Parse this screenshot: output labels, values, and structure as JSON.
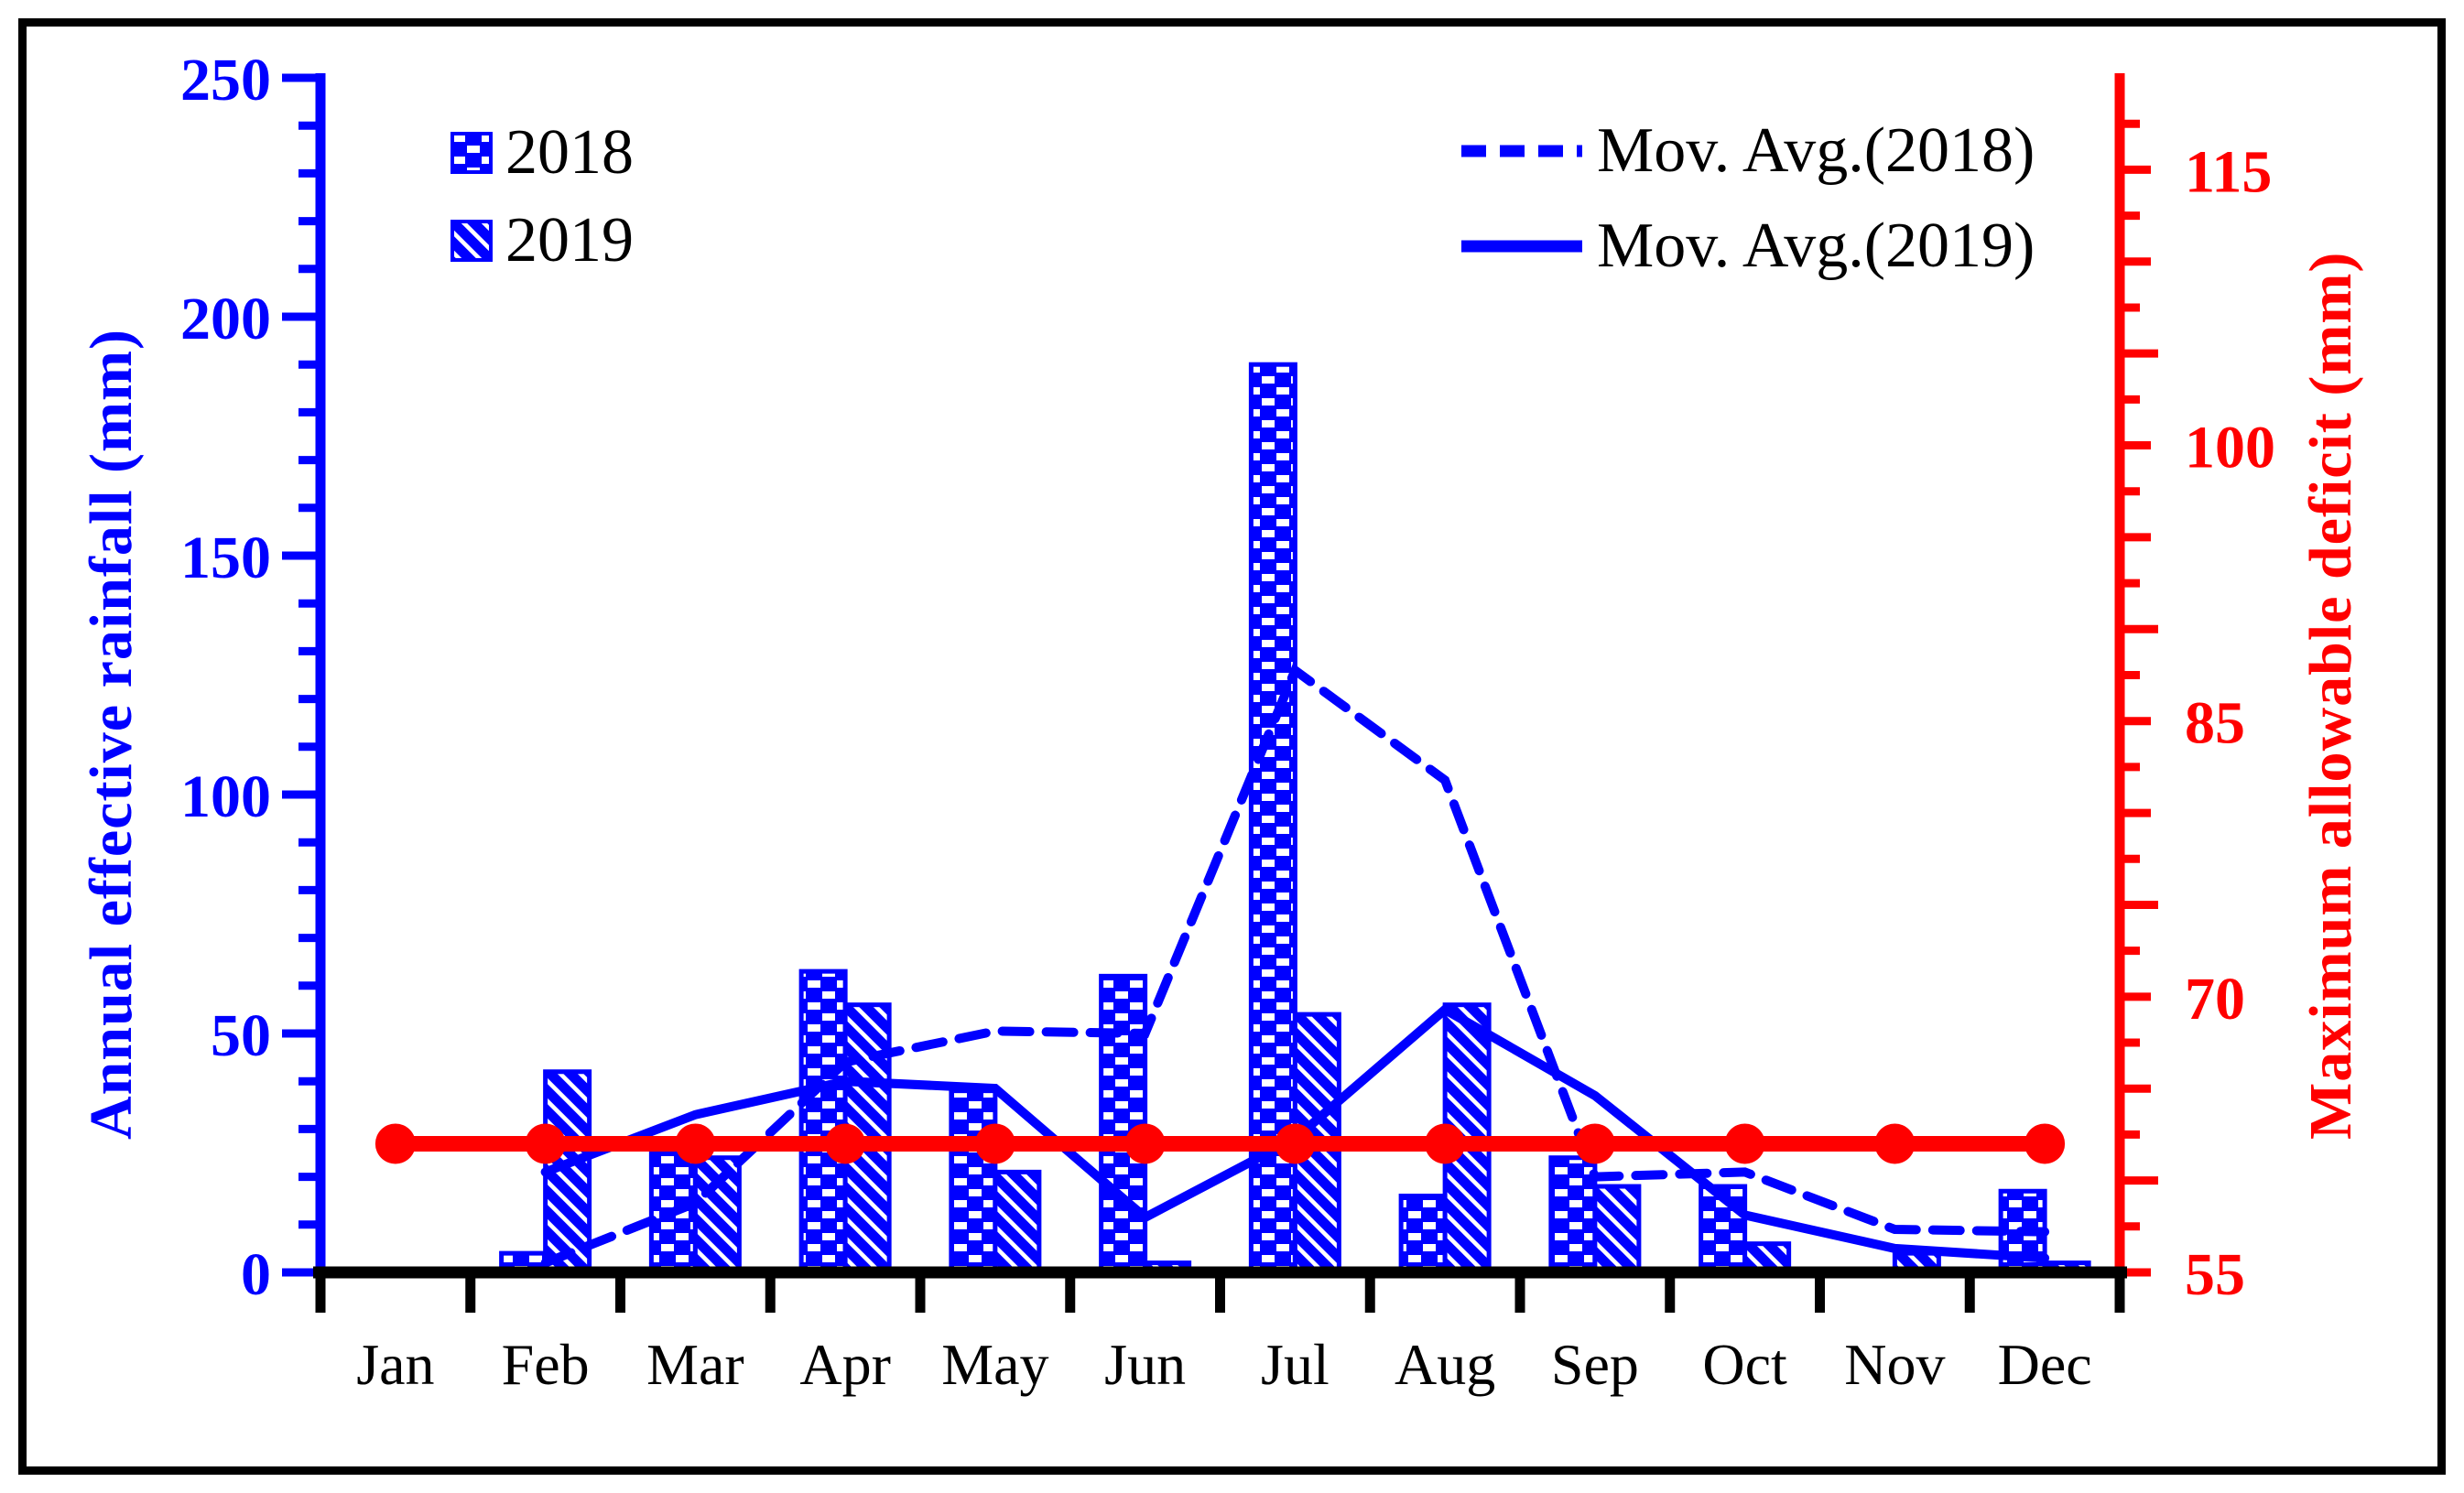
{
  "chart_data": {
    "type": "bar",
    "title": "",
    "categories": [
      "Jan",
      "Feb",
      "Mar",
      "Apr",
      "May",
      "Jun",
      "Jul",
      "Aug",
      "Sep",
      "Oct",
      "Nov",
      "Dec"
    ],
    "series": [
      {
        "name": "2018",
        "kind": "bar",
        "pattern": "checker",
        "color": "#0000ff",
        "values": [
          0,
          4,
          25,
          63,
          38,
          62,
          190,
          16,
          24,
          18,
          0,
          17
        ]
      },
      {
        "name": "2019",
        "kind": "bar",
        "pattern": "diagonal",
        "color": "#0000ff",
        "values": [
          0,
          42,
          24,
          56,
          21,
          2,
          54,
          56,
          18,
          6,
          4,
          2
        ]
      },
      {
        "name": "Mov. Avg.(2018)",
        "kind": "line",
        "dashed": true,
        "color": "#0000ff",
        "axis": "left",
        "values": [
          null,
          2,
          14.5,
          44,
          50.5,
          50,
          126,
          103,
          20,
          21,
          9,
          8.5
        ]
      },
      {
        "name": "Mov. Avg.(2019)",
        "kind": "line",
        "dashed": false,
        "color": "#0000ff",
        "axis": "left",
        "values": [
          null,
          21,
          33,
          40,
          38.5,
          11.5,
          28,
          55,
          37,
          12,
          5,
          3
        ]
      },
      {
        "name": "Maximum allowable deficit",
        "kind": "line-markers",
        "color": "#ff0000",
        "axis": "right",
        "constant": 62,
        "values": [
          62,
          62,
          62,
          62,
          62,
          62,
          62,
          62,
          62,
          62,
          62,
          62
        ]
      }
    ],
    "left_axis": {
      "title": "Annual effective rainfall (mm)",
      "min": 0,
      "max": 250,
      "tick_labels": [
        0,
        50,
        100,
        150,
        200,
        250
      ],
      "major_step": 50,
      "minor_step": 10,
      "color": "#0000ff"
    },
    "right_axis": {
      "title": "Maximum allowable deficit (mm)",
      "min": 55,
      "max": 120,
      "tick_labels": [
        55,
        70,
        85,
        100,
        115
      ],
      "major_step": 15,
      "minor_step": 2.5,
      "color": "#ff0000"
    },
    "x_axis": {
      "labels": [
        "Jan",
        "Feb",
        "Mar",
        "Apr",
        "May",
        "Jun",
        "Jul",
        "Aug",
        "Sep",
        "Oct",
        "Nov",
        "Dec"
      ],
      "color": "#000000"
    },
    "grid": false,
    "legend_position": "top"
  },
  "legend_years": [
    {
      "label": "2018",
      "pattern": "checker"
    },
    {
      "label": "2019",
      "pattern": "diagonal"
    }
  ],
  "legend_lines": [
    {
      "label": "Mov. Avg.(2018)",
      "style": "dashed"
    },
    {
      "label": "Mov. Avg.(2019)",
      "style": "solid"
    }
  ],
  "colors": {
    "blue": "#0000ff",
    "red": "#ff0000",
    "black": "#000000",
    "background": "#ffffff"
  }
}
